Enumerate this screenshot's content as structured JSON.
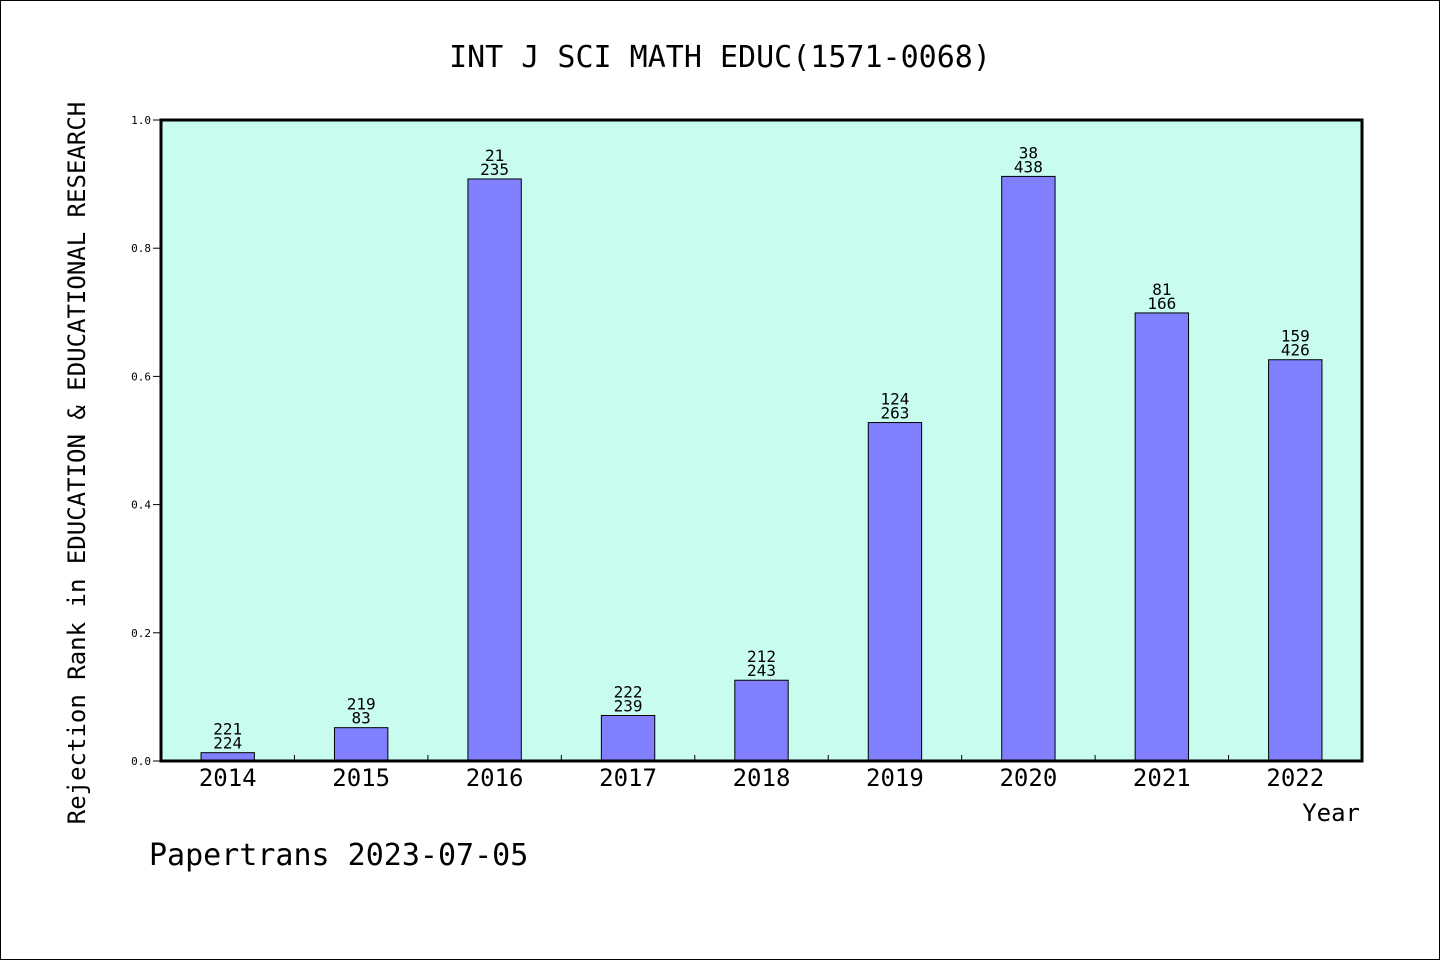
{
  "chart_data": {
    "type": "bar",
    "title": "INT J SCI MATH EDUC(1571-0068)",
    "xlabel": "Year",
    "ylabel": "Rejection Rank in EDUCATION & EDUCATIONAL RESEARCH",
    "ylim": [
      0,
      1
    ],
    "yticks": [
      "0.0",
      "0.2",
      "0.4",
      "0.6",
      "0.8",
      "1.0"
    ],
    "categories": [
      "2014",
      "2015",
      "2016",
      "2017",
      "2018",
      "2019",
      "2020",
      "2021",
      "2022"
    ],
    "values": [
      0.013,
      0.052,
      0.908,
      0.071,
      0.126,
      0.528,
      0.912,
      0.699,
      0.626
    ],
    "labels_top": [
      "221",
      "219",
      "21",
      "222",
      "212",
      "124",
      "38",
      "81",
      "159"
    ],
    "labels_bottom": [
      "224",
      "83",
      "235",
      "239",
      "243",
      "263",
      "438",
      "166",
      "426"
    ],
    "grid": false,
    "colors": {
      "plot_background": "#c8fcee",
      "bar_fill": "#8080ff",
      "bar_stroke": "#000000"
    }
  },
  "footer": "Papertrans 2023-07-05"
}
